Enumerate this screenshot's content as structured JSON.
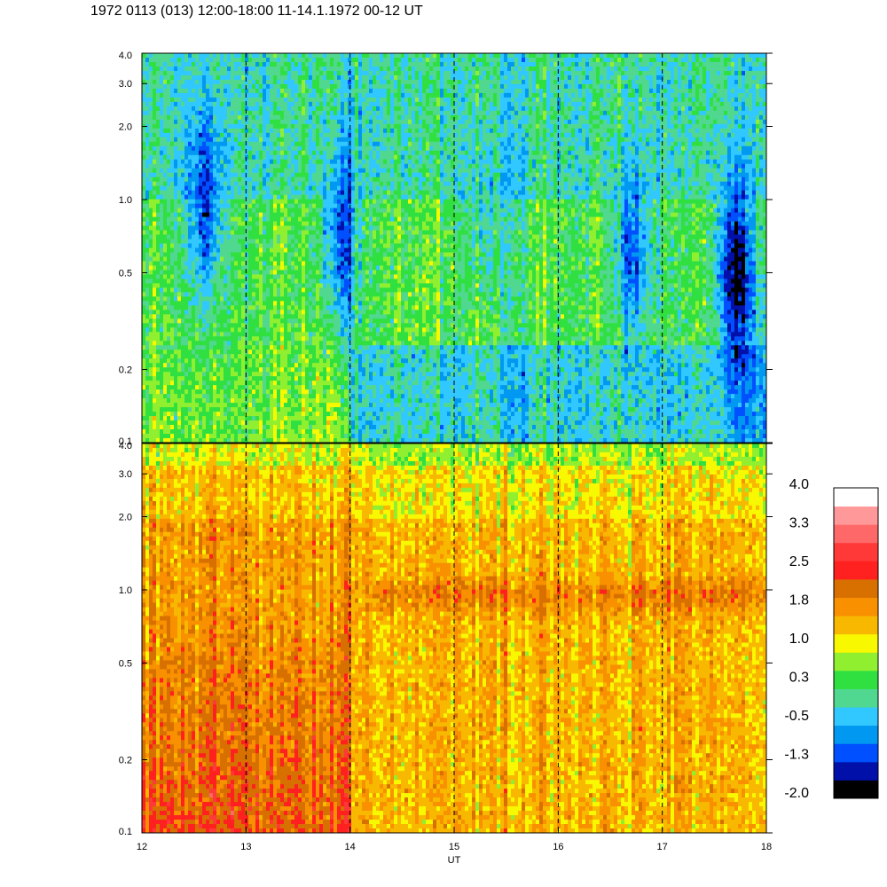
{
  "title": "1972 0113 (013) 12:00-18:00 11-14.1.1972  00-12 UT",
  "chart_data": [
    {
      "type": "heatmap",
      "panel": "upper",
      "xlabel": "",
      "ylabel": "",
      "xlim": [
        12,
        18
      ],
      "ylim": [
        0.1,
        4.0
      ],
      "y_scale": "log",
      "y_ticks": [
        {
          "value": 0.1,
          "label": "0.1"
        },
        {
          "value": 0.2,
          "label": "0.2"
        },
        {
          "value": 0.5,
          "label": "0.5"
        },
        {
          "value": 1.0,
          "label": "1.0"
        },
        {
          "value": 2.0,
          "label": "2.0"
        },
        {
          "value": 3.0,
          "label": "3.0"
        },
        {
          "value": 4.0,
          "label": "4.0"
        }
      ],
      "hour_gridlines": [
        13,
        14,
        15,
        16,
        17
      ],
      "background_level": 0.3,
      "minima": [
        {
          "time": 12.6,
          "freq": 1.0,
          "level": -1.3
        },
        {
          "time": 13.9,
          "freq": 0.7,
          "level": -1.3
        },
        {
          "time": 15.3,
          "freq": 0.9,
          "level": -0.5
        },
        {
          "time": 16.7,
          "freq": 0.6,
          "level": -1.3
        },
        {
          "time": 17.7,
          "freq": 0.5,
          "level": -2.0
        }
      ]
    },
    {
      "type": "heatmap",
      "panel": "lower",
      "xlabel": "UT",
      "ylabel": "",
      "xlim": [
        12,
        18
      ],
      "ylim": [
        0.1,
        4.0
      ],
      "y_scale": "log",
      "x_ticks": [
        {
          "value": 12,
          "label": "12"
        },
        {
          "value": 13,
          "label": "13"
        },
        {
          "value": 14,
          "label": "14"
        },
        {
          "value": 15,
          "label": "15"
        },
        {
          "value": 16,
          "label": "16"
        },
        {
          "value": 17,
          "label": "17"
        },
        {
          "value": 18,
          "label": "18"
        }
      ],
      "y_ticks": [
        {
          "value": 0.1,
          "label": "0.1"
        },
        {
          "value": 0.2,
          "label": "0.2"
        },
        {
          "value": 0.5,
          "label": "0.5"
        },
        {
          "value": 1.0,
          "label": "1.0"
        },
        {
          "value": 2.0,
          "label": "2.0"
        },
        {
          "value": 3.0,
          "label": "3.0"
        },
        {
          "value": 4.0,
          "label": "4.0"
        }
      ],
      "hour_gridlines": [
        13,
        14,
        15,
        16,
        17
      ],
      "background_level": 1.4,
      "enhanced_band": {
        "freq": 0.95,
        "level": 1.8
      }
    }
  ],
  "colorbar": {
    "tick_labels": [
      "4.0",
      "3.3",
      "2.5",
      "1.8",
      "1.0",
      "0.3",
      "-0.5",
      "-1.3",
      "-2.0"
    ],
    "colors": [
      "#000000",
      "#0010a8",
      "#0050ff",
      "#0098f0",
      "#30c8ff",
      "#50d890",
      "#30e040",
      "#90f030",
      "#f8f800",
      "#f8b800",
      "#f89000",
      "#d87000",
      "#ff2020",
      "#ff3838",
      "#ff6868",
      "#ff9898",
      "#ffffff"
    ],
    "range": [
      -2.0,
      4.0
    ]
  }
}
